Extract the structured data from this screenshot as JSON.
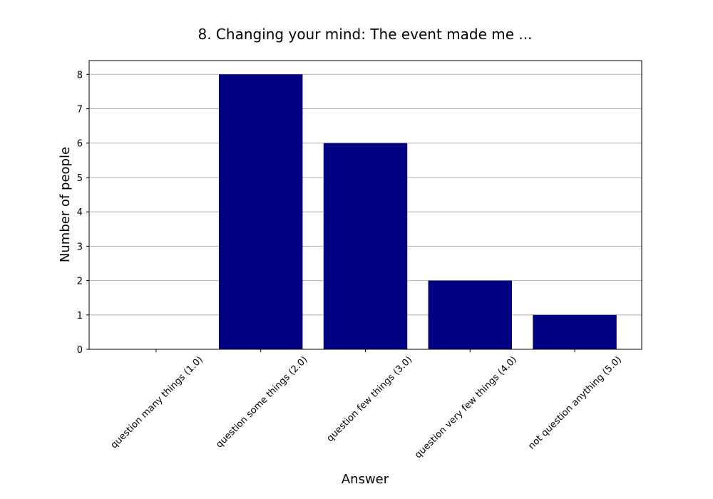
{
  "chart_data": {
    "type": "bar",
    "title": "8. Changing your mind: The event made me ...",
    "xlabel": "Answer",
    "ylabel": "Number of people",
    "categories": [
      "question many things (1.0)",
      "question some things (2.0)",
      "question few things (3.0)",
      "question very few things (4.0)",
      "not question anything (5.0)"
    ],
    "values": [
      0,
      8,
      6,
      2,
      1
    ],
    "ylim": [
      0,
      8.4
    ],
    "yticks": [
      0,
      1,
      2,
      3,
      4,
      5,
      6,
      7,
      8
    ],
    "grid": "y-major",
    "legend": "none",
    "bar_color": "#000080"
  }
}
